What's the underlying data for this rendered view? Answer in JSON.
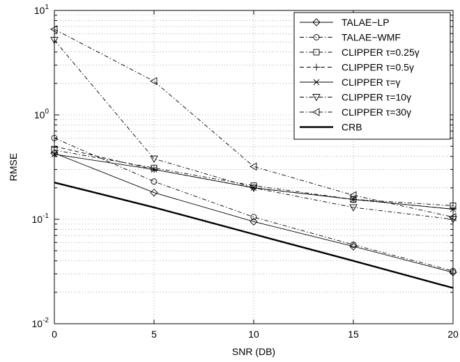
{
  "chart_data": {
    "type": "line",
    "title": "",
    "xlabel": "SNR (DB)",
    "ylabel": "RMSE",
    "xscale": "linear",
    "yscale": "log",
    "xlim": [
      0,
      20
    ],
    "ylim": [
      0.01,
      10
    ],
    "grid": true,
    "legend_position": "top-right",
    "x_ticks": [
      0,
      5,
      10,
      15,
      20
    ],
    "x_tick_labels": [
      "0",
      "5",
      "10",
      "15",
      "20"
    ],
    "y_ticks": [
      0.01,
      0.1,
      1,
      10
    ],
    "y_tick_labels": [
      {
        "base": "10",
        "exp": "-2"
      },
      {
        "base": "10",
        "exp": "-1"
      },
      {
        "base": "10",
        "exp": "0"
      },
      {
        "base": "10",
        "exp": "1"
      }
    ],
    "x": [
      0,
      5,
      10,
      15,
      20
    ],
    "series": [
      {
        "name": "TALAE−LP",
        "marker": "diamond",
        "dash": "solid",
        "width": 0.9,
        "values": [
          0.43,
          0.18,
          0.095,
          0.055,
          0.031
        ]
      },
      {
        "name": "TALAE−WMF",
        "marker": "circle",
        "dash": "dashdot",
        "width": 0.9,
        "values": [
          0.6,
          0.23,
          0.105,
          0.057,
          0.032
        ]
      },
      {
        "name": "CLIPPER τ=0.25γ",
        "marker": "square",
        "dash": "dashdot",
        "width": 0.9,
        "values": [
          0.46,
          0.31,
          0.21,
          0.155,
          0.135
        ]
      },
      {
        "name": "CLIPPER τ=0.5γ",
        "marker": "plus",
        "dash": "dashed",
        "width": 0.9,
        "values": [
          0.5,
          0.3,
          0.2,
          0.155,
          0.125
        ]
      },
      {
        "name": "CLIPPER τ=γ",
        "marker": "x",
        "dash": "solid",
        "width": 0.9,
        "values": [
          0.42,
          0.3,
          0.2,
          0.155,
          0.125
        ]
      },
      {
        "name": "CLIPPER τ=10γ",
        "marker": "triangle-down",
        "dash": "dashdot",
        "width": 0.9,
        "values": [
          5.2,
          0.38,
          0.2,
          0.13,
          0.1
        ]
      },
      {
        "name": "CLIPPER τ=30γ",
        "marker": "triangle-left",
        "dash": "dashdot",
        "width": 0.9,
        "values": [
          6.6,
          2.1,
          0.32,
          0.17,
          0.105
        ]
      },
      {
        "name": "CRB",
        "marker": "none",
        "dash": "solid",
        "width": 2.4,
        "values": [
          0.225,
          0.13,
          0.072,
          0.04,
          0.022
        ]
      }
    ]
  }
}
